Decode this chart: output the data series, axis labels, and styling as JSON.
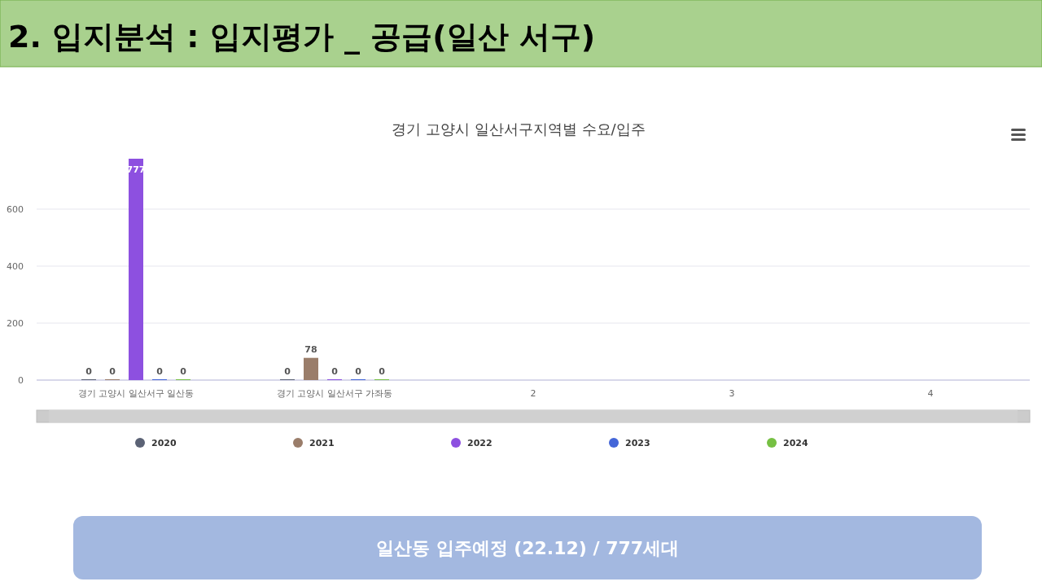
{
  "chart_data": {
    "type": "bar",
    "title": "2. 입지분석 : 입지평가 _ 공급(일산 서구)",
    "subtitle": "경기 고양시 일산서구지역별 수요/입주",
    "categories": [
      "경기 고양시 일산서구 일산동",
      "경기 고양시 일산서구 가좌동",
      "2",
      "3",
      "4"
    ],
    "series": [
      {
        "name": "2020",
        "color": "#5b6275",
        "values": [
          0,
          0,
          null,
          null,
          null
        ]
      },
      {
        "name": "2021",
        "color": "#9a7d6a",
        "values": [
          0,
          78,
          null,
          null,
          null
        ]
      },
      {
        "name": "2022",
        "color": "#8d50e0",
        "values": [
          777,
          0,
          null,
          null,
          null
        ]
      },
      {
        "name": "2023",
        "color": "#4466d8",
        "values": [
          0,
          0,
          null,
          null,
          null
        ]
      },
      {
        "name": "2024",
        "color": "#76c043",
        "values": [
          0,
          0,
          null,
          null,
          null
        ]
      }
    ],
    "ylim": [
      0,
      777
    ],
    "yticks": [
      0,
      200,
      400,
      600
    ],
    "grid": "y",
    "legend": "bottom",
    "data_labels": true,
    "annotations": [
      "일산동 입주예정 (22.12) / 777세대"
    ]
  }
}
